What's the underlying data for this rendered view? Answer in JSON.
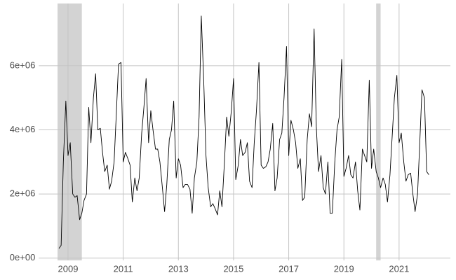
{
  "chart_data": {
    "type": "line",
    "x": [
      2008.67,
      2008.75,
      2008.83,
      2008.92,
      2009.0,
      2009.08,
      2009.17,
      2009.25,
      2009.33,
      2009.42,
      2009.5,
      2009.58,
      2009.67,
      2009.75,
      2009.83,
      2009.92,
      2010.0,
      2010.08,
      2010.17,
      2010.25,
      2010.33,
      2010.42,
      2010.5,
      2010.58,
      2010.67,
      2010.75,
      2010.83,
      2010.92,
      2011.0,
      2011.08,
      2011.17,
      2011.25,
      2011.33,
      2011.42,
      2011.5,
      2011.58,
      2011.67,
      2011.75,
      2011.83,
      2011.92,
      2012.0,
      2012.08,
      2012.17,
      2012.25,
      2012.33,
      2012.42,
      2012.5,
      2012.58,
      2012.67,
      2012.75,
      2012.83,
      2012.92,
      2013.0,
      2013.08,
      2013.17,
      2013.25,
      2013.33,
      2013.42,
      2013.5,
      2013.58,
      2013.67,
      2013.75,
      2013.83,
      2013.92,
      2014.0,
      2014.08,
      2014.17,
      2014.25,
      2014.33,
      2014.42,
      2014.5,
      2014.58,
      2014.67,
      2014.75,
      2014.83,
      2014.92,
      2015.0,
      2015.08,
      2015.17,
      2015.25,
      2015.33,
      2015.42,
      2015.5,
      2015.58,
      2015.67,
      2015.75,
      2015.83,
      2015.92,
      2016.0,
      2016.08,
      2016.17,
      2016.25,
      2016.33,
      2016.42,
      2016.5,
      2016.58,
      2016.67,
      2016.75,
      2016.83,
      2016.92,
      2017.0,
      2017.08,
      2017.17,
      2017.25,
      2017.33,
      2017.42,
      2017.5,
      2017.58,
      2017.67,
      2017.75,
      2017.83,
      2017.92,
      2018.0,
      2018.08,
      2018.17,
      2018.25,
      2018.33,
      2018.42,
      2018.5,
      2018.58,
      2018.67,
      2018.75,
      2018.83,
      2018.92,
      2019.0,
      2019.08,
      2019.17,
      2019.25,
      2019.33,
      2019.42,
      2019.5,
      2019.58,
      2019.67,
      2019.75,
      2019.83,
      2019.92,
      2020.0,
      2020.08,
      2020.17,
      2020.25,
      2020.33,
      2020.42,
      2020.5,
      2020.58,
      2020.67,
      2020.75,
      2020.83,
      2020.92,
      2021.0,
      2021.08,
      2021.17,
      2021.25,
      2021.33,
      2021.42,
      2021.5,
      2021.58,
      2021.67,
      2021.75,
      2021.83,
      2021.92,
      2022.0,
      2022.08
    ],
    "values": [
      300000,
      400000,
      3000000,
      4900000,
      3200000,
      3600000,
      2000000,
      1900000,
      1950000,
      1200000,
      1400000,
      1800000,
      2000000,
      4700000,
      3600000,
      5000000,
      5750000,
      4000000,
      4050000,
      3300000,
      2700000,
      2900000,
      2150000,
      2400000,
      3000000,
      4500000,
      6050000,
      6100000,
      3000000,
      3300000,
      3100000,
      2900000,
      1750000,
      2500000,
      2100000,
      2500000,
      3900000,
      4700000,
      5600000,
      3600000,
      4600000,
      4000000,
      3400000,
      3400000,
      3000000,
      2200000,
      1450000,
      2300000,
      3700000,
      4000000,
      4900000,
      2500000,
      3100000,
      2900000,
      2200000,
      2300000,
      2300000,
      2150000,
      1400000,
      2500000,
      3000000,
      4400000,
      7550000,
      5500000,
      3200000,
      2200000,
      1600000,
      1700000,
      1550000,
      1350000,
      2100000,
      1600000,
      3000000,
      4400000,
      3800000,
      4600000,
      5600000,
      2450000,
      2900000,
      3700000,
      3200000,
      3300000,
      3600000,
      2400000,
      2200000,
      3600000,
      4600000,
      6100000,
      2900000,
      2800000,
      2850000,
      3000000,
      3400000,
      4200000,
      2100000,
      2500000,
      3700000,
      3900000,
      5000000,
      6600000,
      3200000,
      4300000,
      4000000,
      3600000,
      2800000,
      3100000,
      1800000,
      1900000,
      3700000,
      4500000,
      4100000,
      7150000,
      4100000,
      2700000,
      3200000,
      2200000,
      2000000,
      3000000,
      1400000,
      1400000,
      3000000,
      4000000,
      4400000,
      6200000,
      2550000,
      2800000,
      3200000,
      2600000,
      2500000,
      3000000,
      2100000,
      1500000,
      3400000,
      3200000,
      3000000,
      5550000,
      2800000,
      3400000,
      2700000,
      2500000,
      2200000,
      2500000,
      2300000,
      1750000,
      2600000,
      3800000,
      5000000,
      5700000,
      3600000,
      3900000,
      3000000,
      2400000,
      2600000,
      2650000,
      2000000,
      1450000,
      2000000,
      3600000,
      5250000,
      5000000,
      2700000,
      2600000
    ],
    "color": "#000000",
    "shaded_regions": [
      [
        2008.62,
        2009.5
      ],
      [
        2020.17,
        2020.33
      ]
    ],
    "shade_color": "#d3d3d3",
    "xlim": [
      2007.94,
      2022.86
    ],
    "xticks": [
      2009,
      2011,
      2013,
      2015,
      2017,
      2019,
      2021
    ],
    "ylim": [
      -70000,
      7940000
    ],
    "yticks": [
      {
        "value": 0,
        "label": "0e+00"
      },
      {
        "value": 2000000,
        "label": "2e+06"
      },
      {
        "value": 4000000,
        "label": "4e+06"
      },
      {
        "value": 6000000,
        "label": "6e+06"
      }
    ],
    "grid": true
  }
}
